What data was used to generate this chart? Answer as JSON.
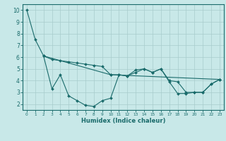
{
  "title": "",
  "xlabel": "Humidex (Indice chaleur)",
  "ylabel": "",
  "background_color": "#c8e8e8",
  "grid_color": "#a8cccc",
  "line_color": "#1a6b6b",
  "xlim": [
    -0.5,
    23.5
  ],
  "ylim": [
    1.5,
    10.5
  ],
  "yticks": [
    2,
    3,
    4,
    5,
    6,
    7,
    8,
    9,
    10
  ],
  "xticks": [
    0,
    1,
    2,
    3,
    4,
    5,
    6,
    7,
    8,
    9,
    10,
    11,
    12,
    13,
    14,
    15,
    16,
    17,
    18,
    19,
    20,
    21,
    22,
    23
  ],
  "line1_x": [
    0,
    1,
    2,
    3,
    4,
    5,
    6,
    7,
    8,
    9,
    10,
    11,
    12,
    13,
    14,
    15,
    16,
    17,
    18,
    19,
    20,
    21,
    22,
    23
  ],
  "line1_y": [
    10.0,
    7.5,
    6.1,
    5.8,
    5.7,
    5.6,
    5.5,
    5.4,
    5.3,
    5.2,
    4.5,
    4.5,
    4.4,
    4.9,
    5.0,
    4.7,
    5.0,
    4.0,
    3.9,
    3.0,
    3.0,
    3.0,
    3.7,
    4.1
  ],
  "line2_x": [
    2,
    3,
    4,
    5,
    6,
    7,
    8,
    9,
    10,
    11,
    12,
    13,
    14,
    15,
    16,
    17,
    18,
    19,
    20,
    21,
    22,
    23
  ],
  "line2_y": [
    6.1,
    3.3,
    4.5,
    2.7,
    2.3,
    1.9,
    1.8,
    2.3,
    2.5,
    4.5,
    4.4,
    4.7,
    5.0,
    4.7,
    5.0,
    3.9,
    2.9,
    2.9,
    3.0,
    3.0,
    3.7,
    4.1
  ],
  "line3_x": [
    2,
    10,
    23
  ],
  "line3_y": [
    6.1,
    4.5,
    4.1
  ]
}
